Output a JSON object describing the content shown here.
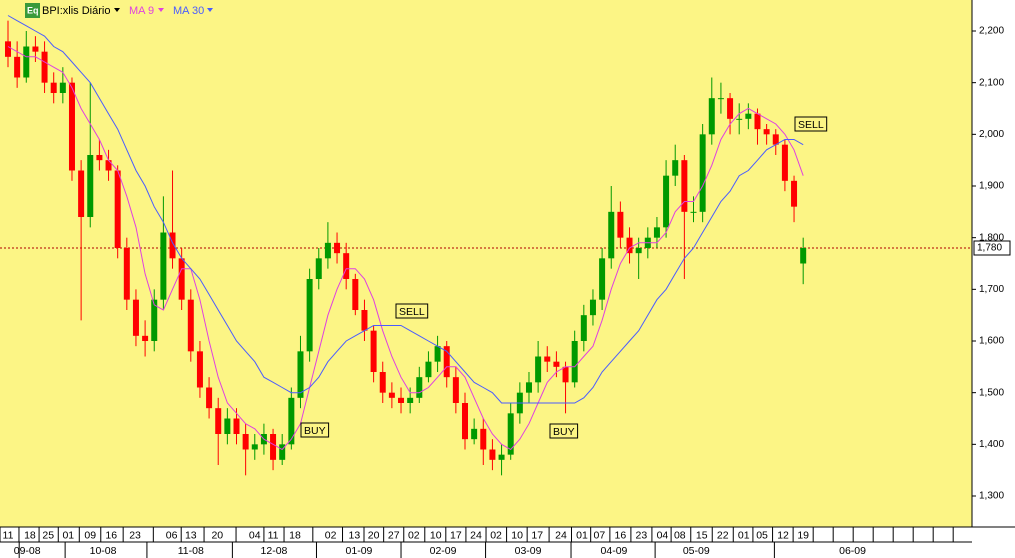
{
  "chart_data": {
    "type": "candlestick",
    "title": "BPI:xlis Diário",
    "badge": "Eq",
    "x": [
      0,
      1,
      2,
      3,
      4,
      5,
      6,
      7,
      8,
      9,
      10,
      11,
      12,
      13,
      14,
      15,
      16,
      17,
      18,
      19,
      20,
      21,
      22,
      23,
      24,
      25,
      26,
      27,
      28,
      29,
      30,
      31,
      32,
      33,
      34,
      35,
      36,
      37,
      38,
      39,
      40,
      41,
      42,
      43,
      44,
      45,
      46,
      47,
      48,
      49,
      50,
      51,
      52,
      53,
      54,
      55,
      56,
      57,
      58,
      59,
      60,
      61,
      62,
      63,
      64,
      65,
      66,
      67,
      68,
      69,
      70,
      71,
      72,
      73,
      74,
      75,
      76,
      77,
      78,
      79,
      80,
      81,
      82,
      83,
      84,
      85,
      86,
      87
    ],
    "open": [
      2180,
      2150,
      2110,
      2170,
      2160,
      2100,
      2080,
      2100,
      1930,
      1840,
      1960,
      1950,
      1930,
      1780,
      1680,
      1610,
      1600,
      1680,
      1810,
      1760,
      1680,
      1580,
      1510,
      1470,
      1420,
      1450,
      1420,
      1390,
      1400,
      1420,
      1370,
      1400,
      1490,
      1580,
      1720,
      1760,
      1790,
      1770,
      1720,
      1660,
      1620,
      1540,
      1500,
      1490,
      1480,
      1490,
      1530,
      1560,
      1590,
      1530,
      1480,
      1410,
      1430,
      1390,
      1370,
      1380,
      1460,
      1500,
      1520,
      1570,
      1560,
      1550,
      1520,
      1600,
      1650,
      1680,
      1760,
      1850,
      1800,
      1770,
      1780,
      1800,
      1820,
      1920,
      1950,
      1850,
      1850,
      2000,
      2070,
      2070,
      2030,
      2030,
      2040,
      2010,
      2000,
      1980,
      1910,
      1750
    ],
    "high": [
      2220,
      2180,
      2200,
      2190,
      2180,
      2120,
      2130,
      2110,
      1950,
      2100,
      1990,
      1970,
      1940,
      1800,
      1700,
      1640,
      1700,
      1880,
      1930,
      1780,
      1700,
      1600,
      1530,
      1490,
      1470,
      1470,
      1440,
      1420,
      1440,
      1430,
      1420,
      1510,
      1610,
      1740,
      1780,
      1830,
      1810,
      1790,
      1730,
      1680,
      1630,
      1560,
      1520,
      1510,
      1510,
      1550,
      1580,
      1610,
      1600,
      1550,
      1500,
      1450,
      1450,
      1410,
      1400,
      1480,
      1520,
      1540,
      1600,
      1590,
      1580,
      1560,
      1620,
      1670,
      1700,
      1780,
      1900,
      1870,
      1820,
      1800,
      1820,
      1840,
      1950,
      1980,
      1960,
      1880,
      2020,
      2110,
      2100,
      2080,
      2060,
      2060,
      2050,
      2020,
      2010,
      1990,
      1920,
      1800
    ],
    "low": [
      2130,
      2090,
      2100,
      2140,
      2080,
      2060,
      2060,
      1910,
      1640,
      1820,
      1930,
      1910,
      1760,
      1660,
      1590,
      1570,
      1580,
      1660,
      1740,
      1660,
      1560,
      1490,
      1450,
      1360,
      1400,
      1400,
      1340,
      1370,
      1380,
      1350,
      1360,
      1390,
      1470,
      1560,
      1700,
      1740,
      1750,
      1700,
      1650,
      1600,
      1520,
      1480,
      1470,
      1460,
      1460,
      1480,
      1520,
      1540,
      1510,
      1460,
      1390,
      1400,
      1360,
      1350,
      1340,
      1370,
      1440,
      1480,
      1500,
      1540,
      1530,
      1460,
      1510,
      1580,
      1630,
      1660,
      1740,
      1780,
      1750,
      1720,
      1760,
      1780,
      1800,
      1900,
      1720,
      1830,
      1830,
      1980,
      2040,
      2000,
      2000,
      2010,
      1980,
      1980,
      1960,
      1890,
      1830,
      1710
    ],
    "close": [
      2150,
      2110,
      2170,
      2160,
      2100,
      2080,
      2100,
      1930,
      1840,
      1960,
      1950,
      1930,
      1780,
      1680,
      1610,
      1600,
      1680,
      1810,
      1760,
      1680,
      1580,
      1510,
      1470,
      1420,
      1450,
      1420,
      1390,
      1400,
      1420,
      1370,
      1400,
      1490,
      1580,
      1720,
      1760,
      1790,
      1770,
      1720,
      1660,
      1620,
      1540,
      1500,
      1490,
      1480,
      1490,
      1530,
      1560,
      1590,
      1530,
      1480,
      1410,
      1430,
      1390,
      1370,
      1380,
      1460,
      1500,
      1520,
      1570,
      1560,
      1550,
      1520,
      1600,
      1650,
      1680,
      1760,
      1850,
      1800,
      1770,
      1780,
      1800,
      1820,
      1920,
      1950,
      1850,
      1850,
      2000,
      2070,
      2070,
      2030,
      2030,
      2040,
      2010,
      2000,
      1980,
      1910,
      1860,
      1780
    ],
    "up_color": "#009900",
    "down_color": "#ff0000",
    "series": [
      {
        "name": "MA 9",
        "color": "#e040e0",
        "values": [
          2170,
          2160,
          2150,
          2150,
          2140,
          2130,
          2120,
          2090,
          2050,
          2020,
          1990,
          1950,
          1930,
          1880,
          1820,
          1730,
          1670,
          1660,
          1700,
          1740,
          1740,
          1680,
          1600,
          1530,
          1480,
          1460,
          1440,
          1430,
          1410,
          1400,
          1390,
          1410,
          1440,
          1510,
          1580,
          1650,
          1700,
          1740,
          1740,
          1720,
          1680,
          1620,
          1570,
          1530,
          1500,
          1500,
          1510,
          1530,
          1550,
          1550,
          1530,
          1490,
          1450,
          1420,
          1400,
          1390,
          1410,
          1440,
          1480,
          1520,
          1540,
          1550,
          1550,
          1570,
          1590,
          1640,
          1700,
          1750,
          1780,
          1790,
          1790,
          1790,
          1810,
          1850,
          1870,
          1870,
          1900,
          1940,
          1990,
          2020,
          2040,
          2050,
          2040,
          2030,
          2020,
          2000,
          1970,
          1920
        ]
      },
      {
        "name": "MA 30",
        "color": "#4a5cff",
        "values": [
          2230,
          2220,
          2210,
          2200,
          2190,
          2170,
          2160,
          2140,
          2120,
          2100,
          2070,
          2040,
          2010,
          1970,
          1930,
          1900,
          1860,
          1830,
          1790,
          1760,
          1740,
          1720,
          1690,
          1660,
          1630,
          1600,
          1580,
          1560,
          1530,
          1520,
          1510,
          1500,
          1500,
          1510,
          1530,
          1560,
          1580,
          1600,
          1610,
          1620,
          1630,
          1630,
          1630,
          1630,
          1620,
          1610,
          1600,
          1590,
          1580,
          1560,
          1540,
          1520,
          1510,
          1500,
          1480,
          1480,
          1480,
          1480,
          1480,
          1480,
          1480,
          1480,
          1480,
          1490,
          1510,
          1540,
          1560,
          1580,
          1600,
          1620,
          1650,
          1680,
          1700,
          1730,
          1760,
          1780,
          1810,
          1840,
          1870,
          1890,
          1920,
          1930,
          1950,
          1970,
          1980,
          1990,
          1990,
          1980
        ]
      }
    ],
    "last_price": {
      "value": 1780,
      "label": "1,780"
    },
    "annotations": [
      "BUY",
      "SELL",
      "BUY",
      "SELL"
    ],
    "xlim": [
      -0.875,
      105.47
    ],
    "ylim": [
      1240,
      2260
    ],
    "yticks": [
      {
        "value": 1300,
        "label": "1,300"
      },
      {
        "value": 1400,
        "label": "1,400"
      },
      {
        "value": 1500,
        "label": "1,500"
      },
      {
        "value": 1600,
        "label": "1,600"
      },
      {
        "value": 1700,
        "label": "1,700"
      },
      {
        "value": 1800,
        "label": "1,800"
      },
      {
        "value": 1900,
        "label": "1,900"
      },
      {
        "value": 2000,
        "label": "2,000"
      },
      {
        "value": 2100,
        "label": "2,100"
      },
      {
        "value": 2200,
        "label": "2,200"
      }
    ],
    "xticks": [
      {
        "value": 0,
        "label": "11"
      },
      {
        "value": 2.4,
        "label": "18"
      },
      {
        "value": 4.4,
        "label": "25"
      },
      {
        "value": 6.6,
        "label": "01"
      },
      {
        "value": 9.0,
        "label": "09"
      },
      {
        "value": 11.3,
        "label": "16"
      },
      {
        "value": 13.9,
        "label": "23"
      },
      {
        "value": 17.9,
        "label": "06"
      },
      {
        "value": 20.0,
        "label": "13"
      },
      {
        "value": 22.9,
        "label": "20"
      },
      {
        "value": 27.0,
        "label": "04"
      },
      {
        "value": 29.0,
        "label": "11"
      },
      {
        "value": 31.4,
        "label": "18"
      },
      {
        "value": 35.3,
        "label": "02"
      },
      {
        "value": 37.9,
        "label": "13"
      },
      {
        "value": 40.0,
        "label": "20"
      },
      {
        "value": 42.2,
        "label": "27"
      },
      {
        "value": 44.4,
        "label": "02"
      },
      {
        "value": 46.8,
        "label": "10"
      },
      {
        "value": 49.0,
        "label": "17"
      },
      {
        "value": 51.2,
        "label": "24"
      },
      {
        "value": 53.4,
        "label": "02"
      },
      {
        "value": 55.7,
        "label": "10"
      },
      {
        "value": 57.9,
        "label": "17"
      },
      {
        "value": 60.5,
        "label": "24"
      },
      {
        "value": 62.8,
        "label": "01"
      },
      {
        "value": 64.7,
        "label": "07"
      },
      {
        "value": 67.0,
        "label": "16"
      },
      {
        "value": 69.3,
        "label": "23"
      },
      {
        "value": 71.6,
        "label": "04"
      },
      {
        "value": 73.5,
        "label": "08"
      },
      {
        "value": 75.9,
        "label": "15"
      },
      {
        "value": 78.2,
        "label": "22"
      },
      {
        "value": 80.5,
        "label": "01"
      },
      {
        "value": 82.5,
        "label": "05"
      },
      {
        "value": 84.8,
        "label": "12"
      },
      {
        "value": 87.0,
        "label": "19"
      }
    ],
    "month_ticks": [
      {
        "value": 2.1,
        "label": "09-08"
      },
      {
        "value": 10.4,
        "label": "10-08"
      },
      {
        "value": 20.0,
        "label": "11-08"
      },
      {
        "value": 29.1,
        "label": "12-08"
      },
      {
        "value": 38.4,
        "label": "01-09"
      },
      {
        "value": 47.6,
        "label": "02-09"
      },
      {
        "value": 56.9,
        "label": "03-09"
      },
      {
        "value": 66.3,
        "label": "04-09"
      },
      {
        "value": 75.3,
        "label": "05-09"
      },
      {
        "value": 92.4,
        "label": "06-09"
      }
    ],
    "background": "#fcf585"
  }
}
